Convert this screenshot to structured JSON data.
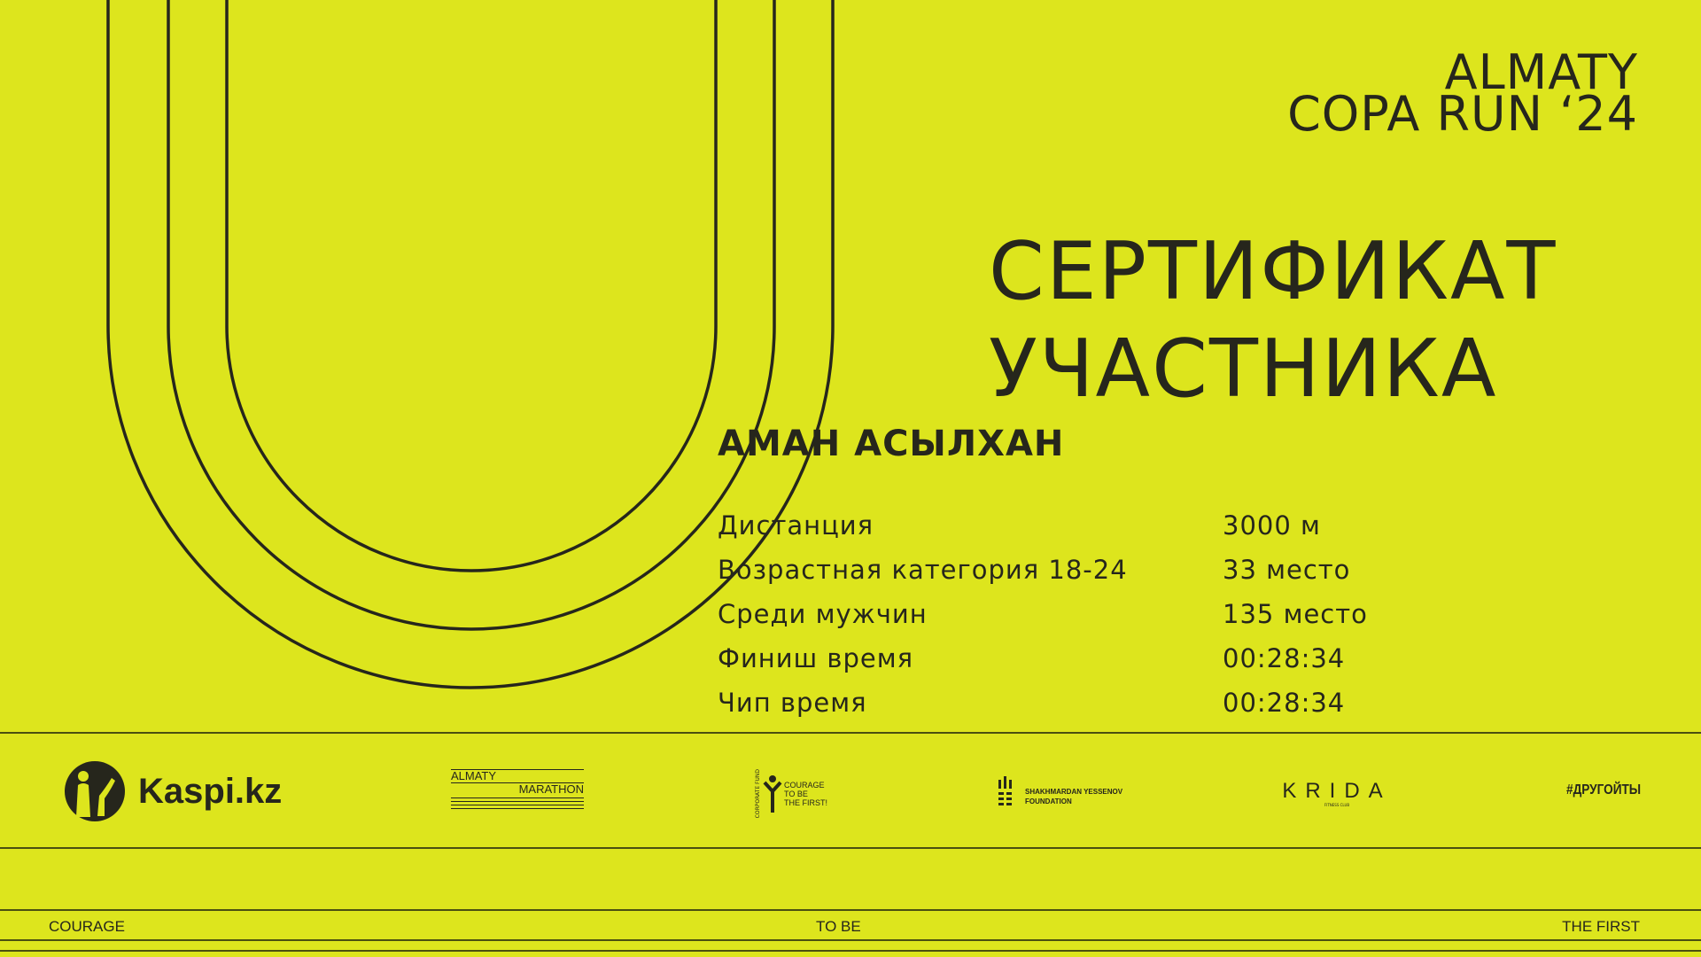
{
  "event": {
    "line1": "ALMATY",
    "line2": "COPA RUN ‘24"
  },
  "certificate": {
    "line1": "СЕРТИФИКАТ",
    "line2": "УЧАСТНИКА"
  },
  "participant_name": "АМАН АСЫЛХАН",
  "results": [
    {
      "label": "Дистанция",
      "value": "3000 м"
    },
    {
      "label": "Возрастная категория 18-24",
      "value": "33 место"
    },
    {
      "label": "Среди мужчин",
      "value": "135 место"
    },
    {
      "label": "Финиш время",
      "value": "00:28:34"
    },
    {
      "label": "Чип время",
      "value": "00:28:34"
    }
  ],
  "sponsors": {
    "kaspi": "Kaspi.kz",
    "almaty_marathon": {
      "line1": "ALMATY",
      "line2": "MARATHON"
    },
    "courage_fund": {
      "arc": "CORPORATE FUND",
      "line1": "COURAGE",
      "line2": "TO BE",
      "line3": "THE FIRST!"
    },
    "yessenov": {
      "line1": "SHAKHMARDAN YESSENOV",
      "line2": "FOUNDATION"
    },
    "krida": {
      "name": "KRIDA",
      "sub": "FITNESS CLUB"
    },
    "hashtag": "#ДРУГОЙТЫ"
  },
  "footer": {
    "left": "COURAGE",
    "center": "TO BE",
    "right": "THE FIRST"
  },
  "colors": {
    "background": "#dde51d",
    "ink": "#26261c"
  }
}
